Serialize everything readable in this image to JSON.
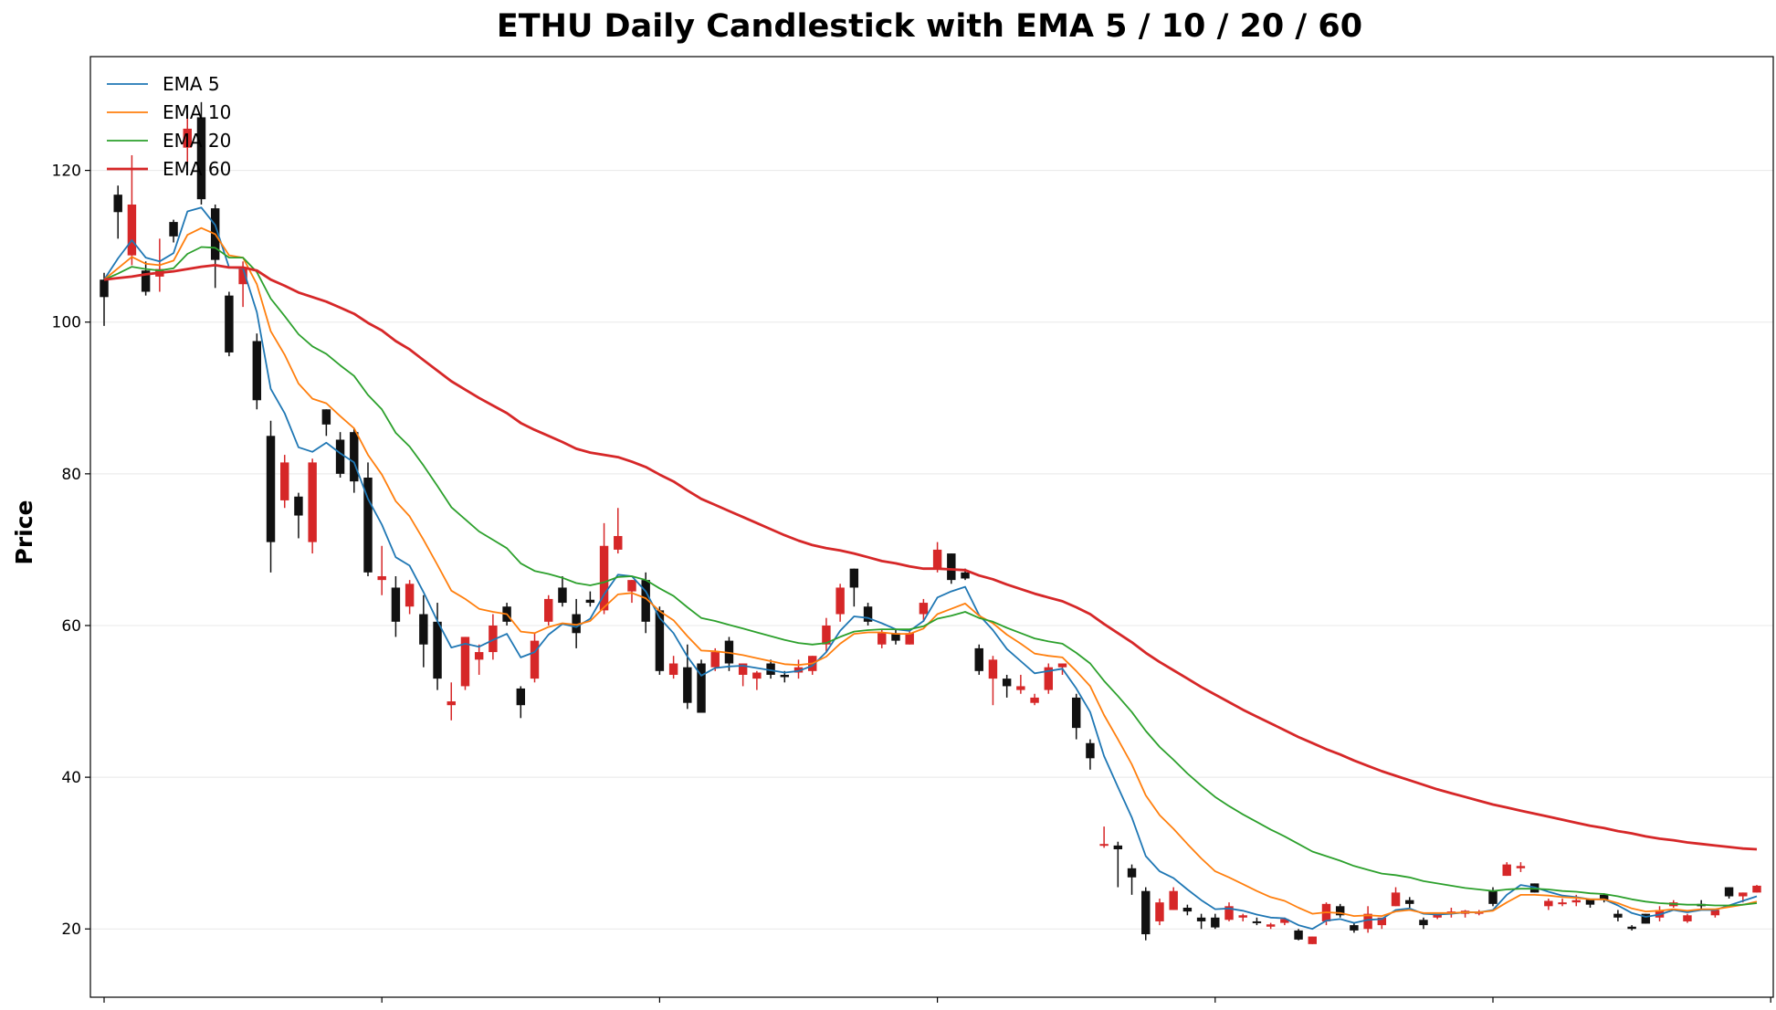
{
  "chart_data": {
    "type": "candlestick",
    "title": "ETHU Daily Candlestick with EMA 5 / 10 / 20 / 60",
    "xlabel": "",
    "ylabel": "Price",
    "ylim": [
      11,
      135
    ],
    "yticks": [
      20,
      40,
      60,
      80,
      100,
      120
    ],
    "grid": true,
    "legend_position": "top-left",
    "colors": {
      "up": "#d62728",
      "down": "#111111"
    },
    "candles": [
      [
        105.6,
        106.5,
        99.5,
        103.3
      ],
      [
        116.8,
        118.0,
        111.0,
        114.5
      ],
      [
        108.8,
        122.0,
        107.5,
        115.5
      ],
      [
        106.8,
        108.0,
        103.5,
        104.0
      ],
      [
        106.0,
        111.0,
        104.0,
        107.0
      ],
      [
        113.2,
        113.5,
        110.5,
        111.3
      ],
      [
        123.0,
        127.5,
        121.0,
        125.5
      ],
      [
        127.0,
        129.0,
        115.5,
        116.2
      ],
      [
        115.0,
        115.5,
        104.5,
        108.2
      ],
      [
        103.5,
        104.0,
        95.5,
        96.0
      ],
      [
        105.0,
        108.0,
        102.0,
        107.0
      ],
      [
        97.5,
        98.5,
        88.5,
        89.7
      ],
      [
        85.0,
        87.0,
        67.0,
        71.0
      ],
      [
        76.5,
        82.5,
        75.5,
        81.5
      ],
      [
        77.0,
        77.5,
        71.5,
        74.5
      ],
      [
        71.0,
        82.0,
        69.5,
        81.5
      ],
      [
        88.5,
        88.5,
        85.0,
        86.5
      ],
      [
        84.5,
        85.5,
        79.5,
        80.0
      ],
      [
        85.5,
        86.0,
        77.5,
        79.0
      ],
      [
        79.5,
        81.5,
        66.5,
        67.0
      ],
      [
        66.0,
        70.5,
        64.0,
        66.5
      ],
      [
        65.0,
        66.5,
        58.5,
        60.5
      ],
      [
        62.5,
        66.0,
        61.5,
        65.5
      ],
      [
        61.5,
        64.0,
        54.5,
        57.5
      ],
      [
        60.5,
        63.0,
        51.5,
        53.0
      ],
      [
        49.5,
        52.5,
        47.5,
        50.0
      ],
      [
        52.0,
        58.5,
        51.5,
        58.5
      ],
      [
        55.5,
        57.5,
        53.5,
        56.5
      ],
      [
        56.5,
        61.5,
        55.5,
        60.0
      ],
      [
        62.5,
        63.0,
        60.0,
        60.5
      ],
      [
        51.7,
        52.0,
        47.8,
        49.5
      ],
      [
        53.0,
        59.0,
        52.5,
        58.0
      ],
      [
        60.5,
        64.0,
        60.0,
        63.5
      ],
      [
        65.0,
        66.5,
        62.5,
        63.0
      ],
      [
        61.5,
        63.5,
        57.0,
        59.0
      ],
      [
        63.4,
        64.5,
        62.5,
        63.0
      ],
      [
        62.0,
        73.5,
        61.5,
        70.5
      ],
      [
        70.0,
        75.5,
        69.5,
        71.8
      ],
      [
        64.5,
        66.0,
        63.0,
        66.0
      ],
      [
        66.0,
        67.0,
        59.0,
        60.5
      ],
      [
        62.0,
        62.5,
        53.5,
        54.0
      ],
      [
        53.5,
        56.0,
        53.0,
        55.0
      ],
      [
        54.5,
        57.5,
        49.0,
        49.8
      ],
      [
        55.0,
        55.5,
        48.5,
        48.5
      ],
      [
        54.5,
        57.0,
        54.0,
        56.5
      ],
      [
        58.0,
        58.5,
        54.0,
        55.0
      ],
      [
        53.5,
        55.0,
        52.0,
        55.0
      ],
      [
        53.0,
        54.0,
        51.5,
        53.8
      ],
      [
        55.0,
        55.5,
        53.0,
        53.5
      ],
      [
        53.5,
        54.0,
        52.5,
        53.2
      ],
      [
        53.8,
        55.5,
        53.0,
        54.5
      ],
      [
        54.0,
        56.0,
        53.5,
        56.0
      ],
      [
        57.5,
        61.0,
        56.5,
        60.0
      ],
      [
        61.5,
        65.5,
        60.5,
        65.0
      ],
      [
        67.5,
        67.5,
        62.5,
        65.0
      ],
      [
        62.5,
        63.0,
        60.0,
        60.5
      ],
      [
        57.5,
        59.5,
        57.0,
        59.0
      ],
      [
        59.0,
        59.5,
        57.5,
        58.0
      ],
      [
        57.5,
        59.5,
        57.5,
        59.0
      ],
      [
        61.5,
        63.5,
        60.5,
        63.0
      ],
      [
        67.5,
        71.0,
        67.0,
        70.0
      ],
      [
        69.5,
        69.5,
        65.5,
        66.0
      ],
      [
        67.0,
        67.5,
        66.0,
        66.2
      ],
      [
        57.0,
        57.5,
        53.5,
        54.0
      ],
      [
        53.0,
        56.0,
        49.5,
        55.5
      ],
      [
        53.0,
        53.5,
        50.5,
        52.0
      ],
      [
        51.5,
        53.5,
        51.0,
        52.0
      ],
      [
        49.8,
        51.0,
        49.5,
        50.5
      ],
      [
        51.5,
        55.0,
        51.0,
        54.5
      ],
      [
        54.5,
        55.0,
        53.5,
        55.0
      ],
      [
        50.5,
        51.0,
        45.0,
        46.5
      ],
      [
        44.5,
        45.0,
        41.0,
        42.5
      ],
      [
        31.0,
        33.5,
        30.7,
        31.2
      ],
      [
        31.0,
        31.5,
        25.5,
        30.5
      ],
      [
        28.0,
        28.5,
        24.5,
        26.8
      ],
      [
        25.0,
        25.5,
        18.5,
        19.3
      ],
      [
        21.0,
        24.0,
        20.5,
        23.5
      ],
      [
        22.5,
        25.5,
        22.5,
        25.0
      ],
      [
        22.8,
        23.2,
        21.8,
        22.3
      ],
      [
        21.5,
        22.0,
        20.0,
        21.0
      ],
      [
        21.5,
        22.0,
        20.0,
        20.2
      ],
      [
        21.2,
        23.5,
        21.0,
        23.0
      ],
      [
        21.5,
        22.0,
        21.0,
        21.8
      ],
      [
        21.0,
        21.5,
        20.5,
        20.8
      ],
      [
        20.3,
        20.8,
        20.0,
        20.6
      ],
      [
        20.8,
        21.5,
        20.5,
        21.3
      ],
      [
        19.8,
        20.0,
        18.5,
        18.6
      ],
      [
        18.0,
        19.0,
        18.0,
        19.0
      ],
      [
        21.0,
        23.5,
        20.5,
        23.3
      ],
      [
        23.0,
        23.3,
        21.5,
        21.8
      ],
      [
        20.5,
        20.8,
        19.5,
        19.8
      ],
      [
        20.0,
        23.0,
        19.5,
        22.0
      ],
      [
        20.5,
        21.0,
        20.0,
        21.5
      ],
      [
        23.0,
        25.5,
        23.0,
        24.8
      ],
      [
        23.8,
        24.2,
        22.8,
        23.3
      ],
      [
        21.2,
        21.5,
        20.0,
        20.5
      ],
      [
        21.5,
        22.0,
        21.3,
        21.9
      ],
      [
        22.0,
        22.8,
        21.5,
        22.3
      ],
      [
        22.0,
        22.5,
        21.5,
        22.4
      ],
      [
        22.0,
        22.5,
        21.8,
        22.3
      ],
      [
        25.0,
        25.5,
        23.0,
        23.3
      ],
      [
        27.0,
        28.8,
        27.0,
        28.5
      ],
      [
        28.0,
        28.8,
        27.5,
        28.3
      ],
      [
        26.0,
        26.0,
        24.8,
        24.8
      ],
      [
        23.0,
        24.0,
        22.5,
        23.7
      ],
      [
        23.5,
        24.0,
        23.0,
        23.5
      ],
      [
        23.5,
        24.5,
        23.0,
        23.8
      ],
      [
        24.0,
        24.0,
        22.8,
        23.2
      ],
      [
        24.5,
        24.7,
        23.5,
        23.8
      ],
      [
        22.0,
        22.5,
        21.0,
        21.5
      ],
      [
        20.3,
        20.5,
        19.8,
        20.0
      ],
      [
        22.0,
        22.0,
        20.7,
        20.7
      ],
      [
        21.5,
        23.0,
        21.0,
        22.5
      ],
      [
        23.0,
        23.8,
        22.8,
        23.5
      ],
      [
        21.0,
        22.0,
        20.8,
        21.8
      ],
      [
        23.3,
        23.8,
        22.5,
        23.0
      ],
      [
        21.8,
        22.5,
        21.5,
        22.5
      ],
      [
        25.5,
        25.5,
        24.0,
        24.3
      ],
      [
        24.3,
        24.8,
        23.5,
        24.8
      ],
      [
        24.8,
        25.8,
        24.8,
        25.7
      ]
    ],
    "series": [
      {
        "name": "EMA 5",
        "color": "#1f77b4",
        "width": 1.8,
        "values": [
          105.6,
          108.4,
          110.8,
          108.5,
          108.0,
          109.1,
          114.6,
          115.1,
          112.8,
          107.2,
          107.1,
          101.3,
          91.2,
          88.0,
          83.5,
          82.9,
          84.1,
          82.7,
          81.5,
          76.7,
          73.3,
          69.0,
          67.9,
          64.4,
          60.6,
          57.1,
          57.6,
          57.2,
          58.1,
          58.9,
          55.8,
          56.5,
          58.8,
          60.2,
          59.8,
          60.9,
          64.1,
          66.7,
          66.5,
          64.5,
          61.0,
          59.0,
          55.9,
          53.4,
          54.4,
          54.6,
          54.7,
          54.4,
          54.1,
          53.8,
          54.0,
          54.7,
          56.5,
          59.3,
          61.2,
          61.0,
          60.3,
          59.5,
          59.3,
          60.6,
          63.7,
          64.5,
          65.1,
          61.4,
          59.4,
          56.9,
          55.3,
          53.7,
          54.0,
          54.3,
          51.7,
          48.6,
          42.8,
          38.7,
          34.7,
          29.6,
          27.6,
          26.7,
          25.2,
          23.8,
          22.6,
          22.7,
          22.4,
          21.9,
          21.5,
          21.4,
          20.5,
          20.0,
          21.1,
          21.3,
          20.8,
          21.2,
          21.3,
          22.5,
          22.7,
          22.0,
          21.9,
          22.0,
          22.2,
          22.2,
          22.5,
          24.5,
          25.8,
          25.5,
          24.9,
          24.4,
          24.2,
          23.9,
          23.9,
          23.1,
          22.1,
          21.6,
          21.9,
          22.5,
          22.2,
          22.5,
          22.5,
          23.1,
          23.7,
          24.3
        ]
      },
      {
        "name": "EMA 10",
        "color": "#ff7f0e",
        "width": 1.8,
        "values": [
          105.6,
          107.1,
          108.6,
          107.7,
          107.5,
          108.1,
          111.5,
          112.4,
          111.6,
          108.8,
          108.5,
          105.0,
          98.8,
          95.7,
          91.9,
          89.9,
          89.3,
          87.6,
          86.0,
          82.5,
          79.9,
          76.4,
          74.4,
          71.3,
          68.0,
          64.6,
          63.5,
          62.2,
          61.8,
          61.5,
          59.2,
          59.0,
          59.8,
          60.3,
          60.1,
          60.6,
          62.4,
          64.1,
          64.3,
          63.6,
          61.9,
          60.7,
          58.6,
          56.7,
          56.6,
          56.4,
          56.1,
          55.7,
          55.3,
          54.9,
          54.8,
          55.0,
          55.9,
          57.6,
          58.9,
          59.1,
          59.1,
          58.9,
          58.9,
          59.6,
          61.5,
          62.2,
          62.9,
          61.3,
          60.3,
          58.8,
          57.6,
          56.3,
          56.0,
          55.8,
          54.0,
          52.0,
          48.2,
          45.0,
          41.7,
          37.6,
          35.0,
          33.2,
          31.2,
          29.3,
          27.6,
          26.8,
          25.9,
          25.0,
          24.2,
          23.7,
          22.8,
          22.0,
          22.2,
          22.1,
          21.7,
          21.8,
          21.7,
          22.3,
          22.5,
          22.1,
          22.1,
          22.1,
          22.2,
          22.2,
          22.4,
          23.5,
          24.5,
          24.5,
          24.4,
          24.2,
          24.1,
          23.9,
          23.9,
          23.4,
          22.7,
          22.3,
          22.4,
          22.6,
          22.4,
          22.6,
          22.6,
          22.9,
          23.2,
          23.6
        ]
      },
      {
        "name": "EMA 20",
        "color": "#2ca02c",
        "width": 1.8,
        "values": [
          105.6,
          106.4,
          107.3,
          107.0,
          106.8,
          107.1,
          109.0,
          109.9,
          109.8,
          108.5,
          108.5,
          106.6,
          103.1,
          100.8,
          98.4,
          96.8,
          95.8,
          94.3,
          92.9,
          90.4,
          88.5,
          85.4,
          83.6,
          81.1,
          78.4,
          75.6,
          74.0,
          72.4,
          71.3,
          70.2,
          68.2,
          67.2,
          66.8,
          66.3,
          65.6,
          65.3,
          65.7,
          66.4,
          66.5,
          66.0,
          64.9,
          63.9,
          62.4,
          61.0,
          60.6,
          60.1,
          59.6,
          59.1,
          58.6,
          58.1,
          57.7,
          57.5,
          57.7,
          58.5,
          59.2,
          59.4,
          59.5,
          59.5,
          59.5,
          59.9,
          60.9,
          61.3,
          61.8,
          61.0,
          60.5,
          59.7,
          59.0,
          58.3,
          57.9,
          57.6,
          56.4,
          55.0,
          52.7,
          50.7,
          48.6,
          46.1,
          44.0,
          42.3,
          40.5,
          38.9,
          37.4,
          36.2,
          35.1,
          34.1,
          33.1,
          32.2,
          31.2,
          30.2,
          29.6,
          29.0,
          28.3,
          27.8,
          27.3,
          27.1,
          26.8,
          26.3,
          26.0,
          25.7,
          25.4,
          25.2,
          25.0,
          25.2,
          25.3,
          25.3,
          25.2,
          25.0,
          24.9,
          24.7,
          24.6,
          24.3,
          23.9,
          23.6,
          23.4,
          23.3,
          23.2,
          23.2,
          23.1,
          23.1,
          23.2,
          23.4
        ]
      },
      {
        "name": "EMA 60",
        "color": "#d62728",
        "width": 2.8,
        "values": [
          105.6,
          105.8,
          106.0,
          106.3,
          106.5,
          106.7,
          107.0,
          107.3,
          107.5,
          107.2,
          107.2,
          106.8,
          105.6,
          104.8,
          103.9,
          103.3,
          102.7,
          101.9,
          101.1,
          99.9,
          98.9,
          97.5,
          96.4,
          95.0,
          93.6,
          92.2,
          91.1,
          90.0,
          89.0,
          88.0,
          86.7,
          85.8,
          85.0,
          84.2,
          83.3,
          82.8,
          82.5,
          82.2,
          81.6,
          80.9,
          79.9,
          79.0,
          77.8,
          76.7,
          75.9,
          75.1,
          74.3,
          73.5,
          72.7,
          71.9,
          71.2,
          70.6,
          70.2,
          69.9,
          69.5,
          69.0,
          68.5,
          68.2,
          67.8,
          67.5,
          67.5,
          67.4,
          67.3,
          66.6,
          66.1,
          65.4,
          64.8,
          64.2,
          63.7,
          63.2,
          62.4,
          61.5,
          60.2,
          59.0,
          57.8,
          56.4,
          55.2,
          54.1,
          53.0,
          51.9,
          50.9,
          49.9,
          48.9,
          48.0,
          47.1,
          46.2,
          45.3,
          44.5,
          43.7,
          43.0,
          42.2,
          41.5,
          40.8,
          40.2,
          39.6,
          39.0,
          38.4,
          37.9,
          37.4,
          36.9,
          36.4,
          36.0,
          35.6,
          35.2,
          34.8,
          34.4,
          34.0,
          33.6,
          33.3,
          32.9,
          32.6,
          32.2,
          31.9,
          31.7,
          31.4,
          31.2,
          31.0,
          30.8,
          30.6,
          30.5
        ]
      }
    ]
  }
}
